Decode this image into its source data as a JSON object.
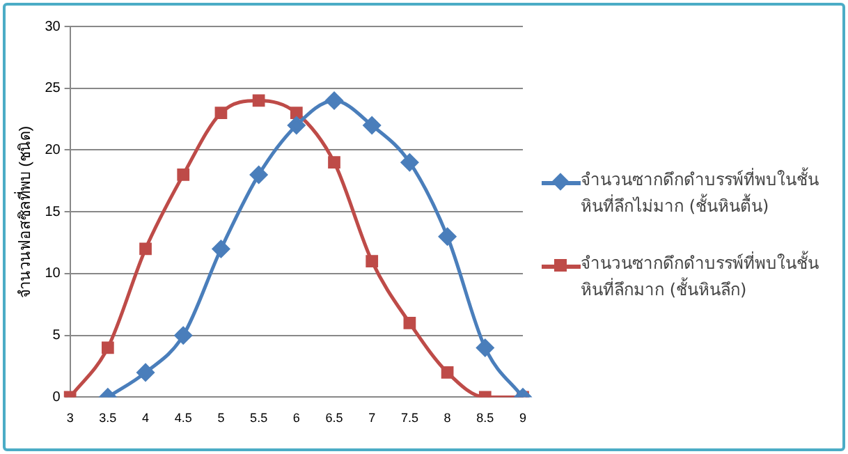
{
  "chart_data": {
    "type": "line",
    "ylabel": "จำนวนฟอสซิลที่พบ (ชนิด)",
    "categories": [
      "3",
      "3.5",
      "4",
      "4.5",
      "5",
      "5.5",
      "6",
      "6.5",
      "7",
      "7.5",
      "8",
      "8.5",
      "9"
    ],
    "series": [
      {
        "name": "จำนวนซากดึกดำบรรพ์ที่พบในชั้นหินที่ลึกไม่มาก (ชั้นหินตื้น)",
        "color": "#4a7ebb",
        "marker": "diamond",
        "values": [
          null,
          0,
          2,
          5,
          12,
          18,
          22,
          24,
          22,
          19,
          13,
          4,
          0
        ]
      },
      {
        "name": "จำนวนซากดึกดำบรรพ์ที่พบในชั้นหินที่ลึกมาก (ชั้นหินลึก)",
        "color": "#be4b48",
        "marker": "square",
        "values": [
          0,
          4,
          12,
          18,
          23,
          24,
          23,
          19,
          11,
          6,
          2,
          0,
          0
        ]
      }
    ],
    "ylim": [
      0,
      30
    ],
    "yticks": [
      0,
      5,
      10,
      15,
      20,
      25,
      30
    ],
    "grid": "y",
    "legend": "right"
  }
}
